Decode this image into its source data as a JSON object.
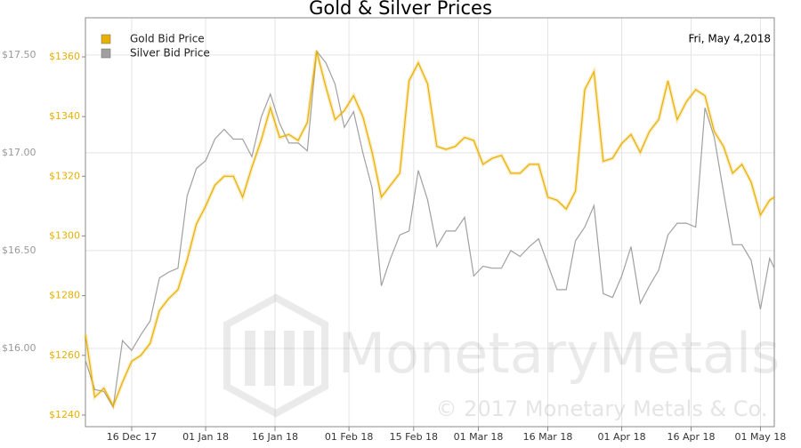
{
  "chart_data": {
    "type": "line",
    "title": "Gold & Silver Prices",
    "date_label": "Fri, May 4,2018",
    "watermark": "MonetaryMetals",
    "copyright": "© 2017 Monetary Metals & Co.",
    "legend": "top-left",
    "grid": true,
    "x": [
      "2017-12-06",
      "2017-12-08",
      "2017-12-10",
      "2017-12-12",
      "2017-12-14",
      "2017-12-16",
      "2017-12-18",
      "2017-12-20",
      "2017-12-22",
      "2017-12-24",
      "2017-12-26",
      "2017-12-28",
      "2017-12-30",
      "2018-01-01",
      "2018-01-03",
      "2018-01-05",
      "2018-01-07",
      "2018-01-09",
      "2018-01-11",
      "2018-01-13",
      "2018-01-15",
      "2018-01-17",
      "2018-01-19",
      "2018-01-21",
      "2018-01-23",
      "2018-01-25",
      "2018-01-27",
      "2018-01-29",
      "2018-01-31",
      "2018-02-02",
      "2018-02-04",
      "2018-02-06",
      "2018-02-08",
      "2018-02-10",
      "2018-02-12",
      "2018-02-14",
      "2018-02-16",
      "2018-02-18",
      "2018-02-20",
      "2018-02-22",
      "2018-02-24",
      "2018-02-26",
      "2018-02-28",
      "2018-03-02",
      "2018-03-04",
      "2018-03-06",
      "2018-03-08",
      "2018-03-10",
      "2018-03-12",
      "2018-03-14",
      "2018-03-16",
      "2018-03-18",
      "2018-03-20",
      "2018-03-22",
      "2018-03-24",
      "2018-03-26",
      "2018-03-28",
      "2018-03-30",
      "2018-04-01",
      "2018-04-03",
      "2018-04-05",
      "2018-04-07",
      "2018-04-09",
      "2018-04-11",
      "2018-04-13",
      "2018-04-15",
      "2018-04-17",
      "2018-04-19",
      "2018-04-21",
      "2018-04-23",
      "2018-04-25",
      "2018-04-27",
      "2018-04-29",
      "2018-05-01",
      "2018-05-03",
      "2018-05-04"
    ],
    "xlim": [
      "2017-12-06",
      "2018-05-04"
    ],
    "xticks": [
      {
        "value": "2017-12-16",
        "label": "16 Dec 17"
      },
      {
        "value": "2018-01-01",
        "label": "01 Jan 18"
      },
      {
        "value": "2018-01-16",
        "label": "16 Jan 18"
      },
      {
        "value": "2018-02-01",
        "label": "01 Feb 18"
      },
      {
        "value": "2018-02-15",
        "label": "15 Feb 18"
      },
      {
        "value": "2018-03-01",
        "label": "01 Mar 18"
      },
      {
        "value": "2018-03-16",
        "label": "16 Mar 18"
      },
      {
        "value": "2018-04-01",
        "label": "01 Apr 18"
      },
      {
        "value": "2018-04-16",
        "label": "16 Apr 18"
      },
      {
        "value": "2018-05-01",
        "label": "01 May 18"
      }
    ],
    "ylim": [
      1236.1,
      1373.1
    ],
    "yticks": [
      {
        "value": 1240,
        "label": "$1240"
      },
      {
        "value": 1260,
        "label": "$1260"
      },
      {
        "value": 1280,
        "label": "$1280"
      },
      {
        "value": 1300,
        "label": "$1300"
      },
      {
        "value": 1320,
        "label": "$1320"
      },
      {
        "value": 1340,
        "label": "$1340"
      },
      {
        "value": 1360,
        "label": "$1360"
      }
    ],
    "y2lim": [
      15.6,
      17.69
    ],
    "y2ticks": [
      {
        "value": 16,
        "label": "$16.00"
      },
      {
        "value": 16.5,
        "label": "$16.50"
      },
      {
        "value": 17,
        "label": "$17.00"
      },
      {
        "value": 17.5,
        "label": "$17.50"
      }
    ],
    "series": [
      {
        "name": "Gold Bid Price",
        "color": "#e8b000",
        "values": [
          1267,
          1246,
          1249,
          1243,
          1251,
          1258,
          1260,
          1264,
          1275,
          1279,
          1282,
          1292,
          1304,
          1310,
          1317,
          1320,
          1320,
          1313,
          1323,
          1332,
          1343,
          1333,
          1334,
          1332,
          1338,
          1362,
          1350,
          1339,
          1342,
          1347,
          1340,
          1328,
          1313,
          1317,
          1321,
          1352,
          1358,
          1351,
          1330,
          1329,
          1330,
          1333,
          1332,
          1324,
          1326,
          1327,
          1321,
          1321,
          1324,
          1324,
          1313,
          1312,
          1309,
          1315,
          1349,
          1355,
          1325,
          1326,
          1331,
          1334,
          1328,
          1335,
          1339,
          1352,
          1339,
          1345,
          1349,
          1347,
          1335,
          1330,
          1321,
          1324,
          1318,
          1307,
          1312,
          1313
        ]
      },
      {
        "name": "Silver Bid Price",
        "color": "#a0a0a0",
        "axis": "y2",
        "values": [
          15.94,
          15.79,
          15.78,
          15.7,
          16.04,
          15.99,
          16.07,
          16.14,
          16.36,
          16.39,
          16.41,
          16.78,
          16.92,
          16.96,
          17.07,
          17.12,
          17.07,
          17.07,
          16.98,
          17.18,
          17.3,
          17.15,
          17.05,
          17.05,
          17.01,
          17.52,
          17.46,
          17.35,
          17.13,
          17.21,
          17.0,
          16.82,
          16.32,
          16.46,
          16.58,
          16.6,
          16.91,
          16.76,
          16.52,
          16.6,
          16.6,
          16.67,
          16.37,
          16.42,
          16.41,
          16.41,
          16.5,
          16.47,
          16.52,
          16.56,
          16.43,
          16.3,
          16.3,
          16.55,
          16.62,
          16.73,
          16.28,
          16.26,
          16.37,
          16.52,
          16.23,
          16.32,
          16.4,
          16.58,
          16.64,
          16.64,
          16.62,
          17.23,
          17.08,
          16.8,
          16.53,
          16.53,
          16.45,
          16.2,
          16.46,
          16.41
        ]
      }
    ]
  }
}
